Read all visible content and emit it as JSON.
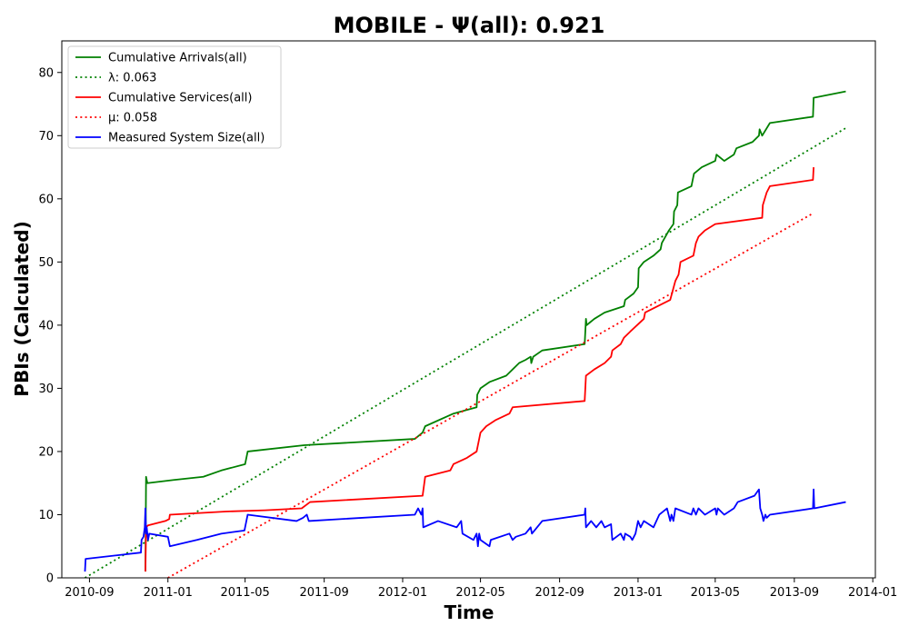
{
  "chart_data": {
    "type": "line",
    "title": "MOBILE -  Ψ(all): 0.921",
    "xlabel": "Time",
    "ylabel": "PBIs (Calculated)",
    "x_is_date": true,
    "xlim": [
      "2010-07-20",
      "2014-01-05"
    ],
    "ylim": [
      0,
      85
    ],
    "x_ticks": [
      "2010-09-01",
      "2011-01-01",
      "2011-05-01",
      "2011-09-01",
      "2012-01-01",
      "2012-05-01",
      "2012-09-01",
      "2013-01-01",
      "2013-05-01",
      "2013-09-01",
      "2014-01-01"
    ],
    "x_tick_labels": [
      "2010-09",
      "2011-01",
      "2011-05",
      "2011-09",
      "2012-01",
      "2012-05",
      "2012-09",
      "2013-01",
      "2013-05",
      "2013-09",
      "2014-01"
    ],
    "y_ticks": [
      0,
      10,
      20,
      30,
      40,
      50,
      60,
      70,
      80
    ],
    "grid": false,
    "legend_position": "top-left",
    "series": [
      {
        "name": "Cumulative Arrivals(all)",
        "label_text": "Cumulative Arrivals(all)",
        "color": "#008000",
        "style": "solid",
        "points": [
          [
            "2010-11-27",
            1
          ],
          [
            "2010-11-28",
            16
          ],
          [
            "2010-11-30",
            15
          ],
          [
            "2011-01-10",
            15.5
          ],
          [
            "2011-02-25",
            16
          ],
          [
            "2011-03-25",
            17
          ],
          [
            "2011-05-01",
            18
          ],
          [
            "2011-05-05",
            20
          ],
          [
            "2011-08-01",
            21
          ],
          [
            "2012-01-20",
            22
          ],
          [
            "2012-02-01",
            23
          ],
          [
            "2012-02-05",
            24
          ],
          [
            "2012-03-20",
            26
          ],
          [
            "2012-04-25",
            27
          ],
          [
            "2012-04-26",
            29
          ],
          [
            "2012-05-01",
            30
          ],
          [
            "2012-05-15",
            31
          ],
          [
            "2012-06-10",
            32
          ],
          [
            "2012-06-20",
            33
          ],
          [
            "2012-06-30",
            34
          ],
          [
            "2012-07-10",
            34.5
          ],
          [
            "2012-07-18",
            35
          ],
          [
            "2012-07-19",
            34
          ],
          [
            "2012-07-22",
            35
          ],
          [
            "2012-08-05",
            36
          ],
          [
            "2012-10-10",
            37
          ],
          [
            "2012-10-12",
            41
          ],
          [
            "2012-10-13",
            40
          ],
          [
            "2012-10-25",
            41
          ],
          [
            "2012-11-10",
            42
          ],
          [
            "2012-12-10",
            43
          ],
          [
            "2012-12-12",
            44
          ],
          [
            "2012-12-25",
            45
          ],
          [
            "2013-01-01",
            46
          ],
          [
            "2013-01-02",
            49
          ],
          [
            "2013-01-10",
            50
          ],
          [
            "2013-01-25",
            51
          ],
          [
            "2013-02-05",
            52
          ],
          [
            "2013-02-07",
            53
          ],
          [
            "2013-02-18",
            55
          ],
          [
            "2013-02-25",
            56
          ],
          [
            "2013-02-26",
            58
          ],
          [
            "2013-03-03",
            59
          ],
          [
            "2013-03-04",
            61
          ],
          [
            "2013-03-25",
            62
          ],
          [
            "2013-03-29",
            64
          ],
          [
            "2013-04-10",
            65
          ],
          [
            "2013-05-01",
            66
          ],
          [
            "2013-05-03",
            67
          ],
          [
            "2013-05-15",
            66
          ],
          [
            "2013-05-30",
            67
          ],
          [
            "2013-06-03",
            68
          ],
          [
            "2013-06-28",
            69
          ],
          [
            "2013-07-08",
            70
          ],
          [
            "2013-07-09",
            71
          ],
          [
            "2013-07-13",
            70
          ],
          [
            "2013-07-25",
            72
          ],
          [
            "2013-09-30",
            73
          ],
          [
            "2013-10-01",
            76
          ],
          [
            "2013-11-20",
            77
          ]
        ]
      },
      {
        "name": "λ: 0.063",
        "label_text": "λ: 0.063",
        "color": "#008000",
        "style": "dotted",
        "points": [
          [
            "2010-08-25",
            0
          ],
          [
            "2013-11-20",
            71.2
          ]
        ]
      },
      {
        "name": "Cumulative Services(all)",
        "label_text": "Cumulative Services(all)",
        "color": "#ff0000",
        "style": "solid",
        "points": [
          [
            "2010-11-27",
            1
          ],
          [
            "2010-11-28",
            8
          ],
          [
            "2010-12-01",
            8.3
          ],
          [
            "2010-12-28",
            9
          ],
          [
            "2011-01-03",
            9.3
          ],
          [
            "2011-01-04",
            10
          ],
          [
            "2011-04-01",
            10.5
          ],
          [
            "2011-06-01",
            10.7
          ],
          [
            "2011-07-28",
            11
          ],
          [
            "2011-08-10",
            12
          ],
          [
            "2012-02-01",
            13
          ],
          [
            "2012-02-05",
            16
          ],
          [
            "2012-03-15",
            17
          ],
          [
            "2012-03-20",
            18
          ],
          [
            "2012-04-10",
            19
          ],
          [
            "2012-04-25",
            20
          ],
          [
            "2012-05-01",
            23
          ],
          [
            "2012-05-10",
            24
          ],
          [
            "2012-05-25",
            25
          ],
          [
            "2012-06-15",
            26
          ],
          [
            "2012-06-20",
            27
          ],
          [
            "2012-10-10",
            28
          ],
          [
            "2012-10-12",
            32
          ],
          [
            "2012-10-25",
            33
          ],
          [
            "2012-11-10",
            34
          ],
          [
            "2012-11-20",
            35
          ],
          [
            "2012-11-22",
            36
          ],
          [
            "2012-12-05",
            37
          ],
          [
            "2012-12-10",
            38
          ],
          [
            "2012-12-20",
            39
          ],
          [
            "2013-01-10",
            41
          ],
          [
            "2013-01-12",
            42
          ],
          [
            "2013-02-20",
            44
          ],
          [
            "2013-02-28",
            47
          ],
          [
            "2013-03-05",
            48
          ],
          [
            "2013-03-08",
            50
          ],
          [
            "2013-03-28",
            51
          ],
          [
            "2013-04-01",
            53
          ],
          [
            "2013-04-05",
            54
          ],
          [
            "2013-04-15",
            55
          ],
          [
            "2013-05-01",
            56
          ],
          [
            "2013-07-13",
            57
          ],
          [
            "2013-07-14",
            59
          ],
          [
            "2013-07-20",
            61
          ],
          [
            "2013-07-25",
            62
          ],
          [
            "2013-09-30",
            63
          ],
          [
            "2013-10-01",
            65
          ]
        ]
      },
      {
        "name": "μ: 0.058",
        "label_text": "μ: 0.058",
        "color": "#ff0000",
        "style": "dotted",
        "points": [
          [
            "2011-01-01",
            0
          ],
          [
            "2013-09-30",
            57.7
          ]
        ]
      },
      {
        "name": "Measured System Size(all)",
        "label_text": "Measured System Size(all)",
        "color": "#0000ff",
        "style": "solid",
        "points": [
          [
            "2010-08-25",
            1
          ],
          [
            "2010-08-26",
            3
          ],
          [
            "2010-11-20",
            4
          ],
          [
            "2010-11-21",
            6
          ],
          [
            "2010-11-24",
            6.5
          ],
          [
            "2010-11-26",
            8
          ],
          [
            "2010-11-27",
            11
          ],
          [
            "2010-11-28",
            7
          ],
          [
            "2010-11-29",
            8
          ],
          [
            "2010-12-01",
            6
          ],
          [
            "2010-12-03",
            7
          ],
          [
            "2011-01-01",
            6.5
          ],
          [
            "2011-01-04",
            5
          ],
          [
            "2011-02-15",
            6
          ],
          [
            "2011-03-25",
            7
          ],
          [
            "2011-04-30",
            7.5
          ],
          [
            "2011-05-01",
            8
          ],
          [
            "2011-05-05",
            10
          ],
          [
            "2011-07-20",
            9
          ],
          [
            "2011-07-30",
            9.5
          ],
          [
            "2011-08-05",
            10
          ],
          [
            "2011-08-08",
            9
          ],
          [
            "2012-01-20",
            10
          ],
          [
            "2012-01-25",
            11
          ],
          [
            "2012-01-30",
            10
          ],
          [
            "2012-02-01",
            11
          ],
          [
            "2012-02-02",
            8
          ],
          [
            "2012-02-25",
            9
          ],
          [
            "2012-03-25",
            8
          ],
          [
            "2012-04-01",
            9
          ],
          [
            "2012-04-03",
            7
          ],
          [
            "2012-04-20",
            6
          ],
          [
            "2012-04-25",
            7
          ],
          [
            "2012-04-27",
            5
          ],
          [
            "2012-04-29",
            7
          ],
          [
            "2012-05-01",
            6
          ],
          [
            "2012-05-15",
            5
          ],
          [
            "2012-05-17",
            6
          ],
          [
            "2012-06-15",
            7
          ],
          [
            "2012-06-20",
            6
          ],
          [
            "2012-06-25",
            6.5
          ],
          [
            "2012-07-10",
            7
          ],
          [
            "2012-07-18",
            8
          ],
          [
            "2012-07-20",
            7
          ],
          [
            "2012-08-05",
            9
          ],
          [
            "2012-10-10",
            10
          ],
          [
            "2012-10-11",
            11
          ],
          [
            "2012-10-12",
            8
          ],
          [
            "2012-10-20",
            9
          ],
          [
            "2012-10-28",
            8
          ],
          [
            "2012-11-05",
            9
          ],
          [
            "2012-11-10",
            8
          ],
          [
            "2012-11-20",
            8.5
          ],
          [
            "2012-11-22",
            6
          ],
          [
            "2012-12-05",
            7
          ],
          [
            "2012-12-10",
            6
          ],
          [
            "2012-12-12",
            7
          ],
          [
            "2012-12-20",
            6.5
          ],
          [
            "2012-12-23",
            6
          ],
          [
            "2012-12-28",
            7
          ],
          [
            "2013-01-01",
            9
          ],
          [
            "2013-01-05",
            8
          ],
          [
            "2013-01-10",
            9
          ],
          [
            "2013-01-25",
            8
          ],
          [
            "2013-02-03",
            10
          ],
          [
            "2013-02-15",
            11
          ],
          [
            "2013-02-20",
            9
          ],
          [
            "2013-02-22",
            10
          ],
          [
            "2013-02-25",
            9
          ],
          [
            "2013-02-28",
            11
          ],
          [
            "2013-03-25",
            10
          ],
          [
            "2013-03-28",
            11
          ],
          [
            "2013-04-01",
            10
          ],
          [
            "2013-04-05",
            11
          ],
          [
            "2013-04-15",
            10
          ],
          [
            "2013-05-01",
            11
          ],
          [
            "2013-05-03",
            10
          ],
          [
            "2013-05-05",
            11
          ],
          [
            "2013-05-15",
            10
          ],
          [
            "2013-05-30",
            11
          ],
          [
            "2013-06-05",
            12
          ],
          [
            "2013-07-01",
            13
          ],
          [
            "2013-07-08",
            14
          ],
          [
            "2013-07-10",
            11
          ],
          [
            "2013-07-13",
            10
          ],
          [
            "2013-07-15",
            9
          ],
          [
            "2013-07-18",
            10
          ],
          [
            "2013-07-20",
            9.5
          ],
          [
            "2013-07-25",
            10
          ],
          [
            "2013-09-30",
            11
          ],
          [
            "2013-10-01",
            14
          ],
          [
            "2013-10-02",
            11
          ],
          [
            "2013-11-20",
            12
          ]
        ]
      }
    ]
  }
}
